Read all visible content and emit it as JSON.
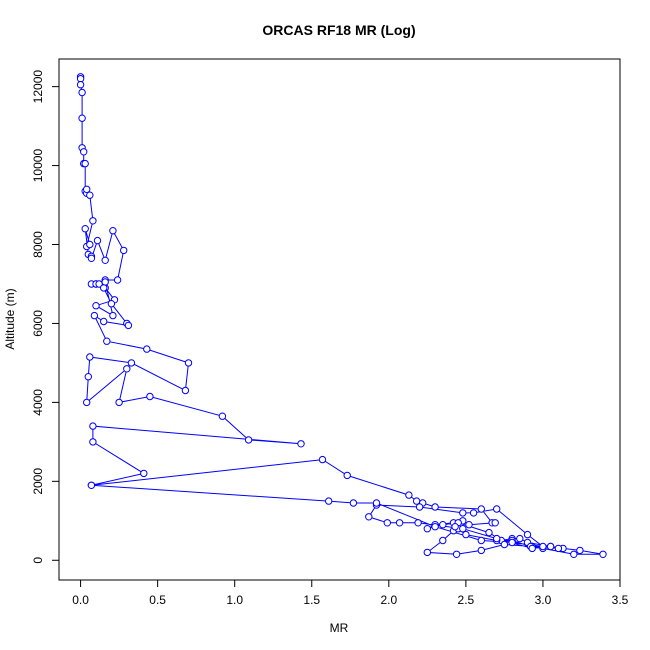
{
  "chart_data": {
    "type": "line",
    "title": "ORCAS RF18 MR (Log)",
    "xlabel": "MR",
    "ylabel": "Altitude (m)",
    "xlim": [
      -0.14,
      3.5
    ],
    "ylim": [
      -500,
      12700
    ],
    "xticks": [
      0.0,
      0.5,
      1.0,
      1.5,
      2.0,
      2.5,
      3.0,
      3.5
    ],
    "xtick_labels": [
      "0.0",
      "0.5",
      "1.0",
      "1.5",
      "2.0",
      "2.5",
      "3.0",
      "3.5"
    ],
    "yticks": [
      0,
      2000,
      4000,
      6000,
      8000,
      10000,
      12000
    ],
    "ytick_labels": [
      "0",
      "2000",
      "4000",
      "6000",
      "8000",
      "10000",
      "12000"
    ],
    "grid": false,
    "series_color": "#0000ff",
    "markers": "open-circle",
    "series": [
      {
        "x": [
          0.0,
          0.0,
          0.0,
          0.01,
          0.01,
          0.01,
          0.02,
          0.02,
          0.03,
          0.03,
          0.04,
          0.04,
          0.06,
          0.08,
          0.04,
          0.06,
          0.03,
          0.05,
          0.07,
          0.07,
          0.11,
          0.16,
          0.21,
          0.28,
          0.24,
          0.16,
          0.1,
          0.16,
          0.22,
          0.1,
          0.21,
          0.16,
          0.07,
          0.1,
          0.12,
          0.15,
          0.2,
          0.3,
          0.31,
          0.15,
          0.09,
          0.17,
          0.43,
          0.7,
          0.68,
          0.33,
          0.06,
          0.05,
          0.04,
          0.3,
          0.25,
          0.45,
          0.92,
          1.09,
          1.43,
          0.08,
          0.08,
          0.41,
          0.07,
          1.57,
          1.73,
          2.13,
          2.18,
          2.22,
          2.3,
          2.6,
          2.67,
          2.69,
          2.52,
          2.48,
          2.42,
          2.3,
          2.25,
          2.35,
          2.45,
          2.65,
          2.73,
          2.8,
          2.85,
          2.9,
          3.05,
          3.13,
          3.24,
          3.39,
          3.2,
          3.0,
          2.93,
          2.75,
          2.6,
          2.44,
          2.25,
          2.35,
          2.42,
          2.45,
          2.43,
          2.5,
          2.7,
          2.8,
          2.92,
          3.05,
          2.93,
          2.7,
          2.48,
          2.19,
          2.07,
          1.99,
          1.87,
          1.92,
          2.2,
          2.48,
          2.55,
          2.7,
          2.9,
          3.0,
          3.1,
          2.8,
          2.6,
          2.3,
          1.92,
          1.77,
          1.61,
          0.07
        ],
        "y": [
          12250,
          12200,
          12050,
          11850,
          11200,
          10450,
          10350,
          10050,
          10050,
          9350,
          9300,
          9400,
          9250,
          8600,
          7950,
          8000,
          8400,
          7750,
          7700,
          7650,
          8100,
          7600,
          8350,
          7850,
          7100,
          7100,
          7000,
          6900,
          6600,
          6450,
          6200,
          7050,
          7000,
          7000,
          7000,
          6900,
          6500,
          6000,
          5950,
          6050,
          6200,
          5550,
          5350,
          5000,
          4300,
          5000,
          5150,
          4650,
          4000,
          4850,
          4000,
          4150,
          3650,
          3050,
          2950,
          3400,
          3000,
          2200,
          1900,
          2550,
          2150,
          1650,
          1500,
          1450,
          1350,
          1300,
          950,
          950,
          900,
          1000,
          950,
          900,
          800,
          900,
          950,
          700,
          500,
          550,
          550,
          450,
          350,
          300,
          250,
          150,
          150,
          300,
          350,
          400,
          250,
          150,
          200,
          500,
          750,
          800,
          850,
          650,
          500,
          500,
          350,
          350,
          300,
          550,
          800,
          950,
          950,
          950,
          1100,
          1400,
          1350,
          1200,
          1200,
          1300,
          650,
          350,
          300,
          450,
          500,
          850,
          1450,
          1450,
          1500,
          1900
        ]
      }
    ]
  }
}
